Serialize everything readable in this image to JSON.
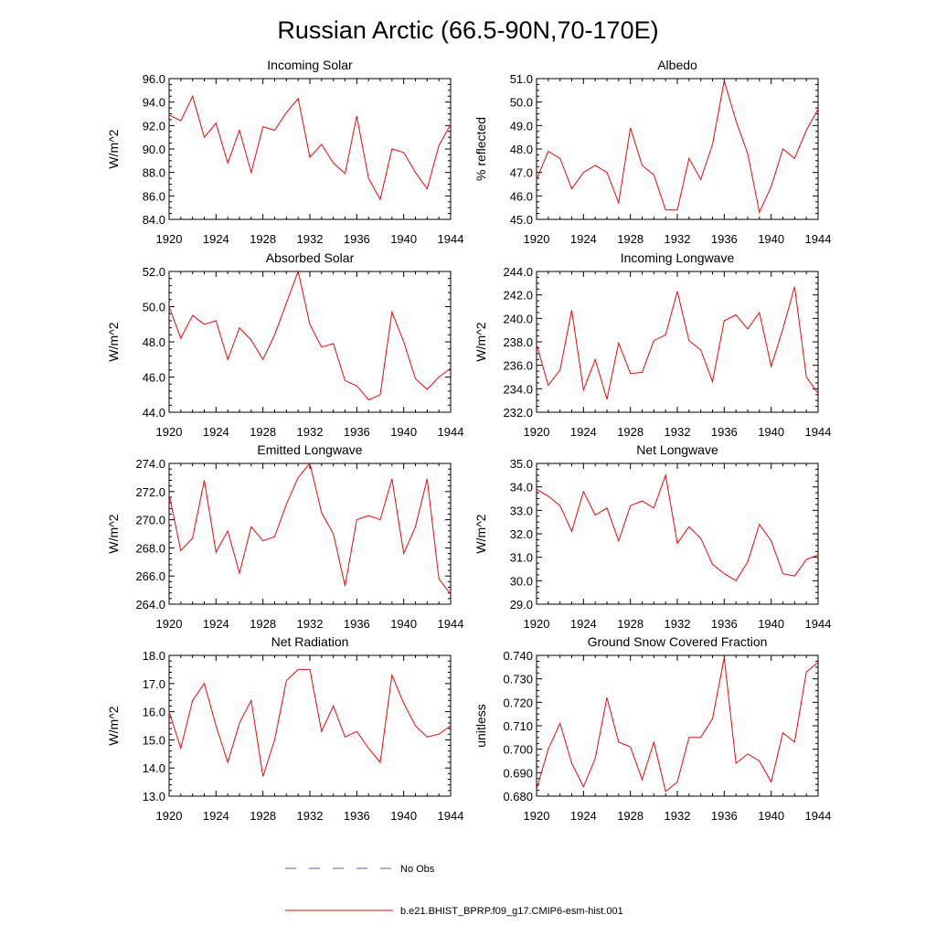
{
  "figure": {
    "title": "Russian Arctic (66.5-90N,70-170E)",
    "series_color": "#ff0000",
    "obs_color": "#5a5ad2"
  },
  "legend": {
    "obs_label": "No Obs",
    "model_label": "b.e21.BHIST_BPRP.f09_g17.CMIP6-esm-hist.001"
  },
  "chart_data": [
    {
      "type": "line",
      "title": "Incoming Solar",
      "ylabel": "W/m^2",
      "xlim": [
        1920,
        1944
      ],
      "ylim": [
        84.0,
        96.0
      ],
      "xticks": [
        1920,
        1924,
        1928,
        1932,
        1936,
        1940,
        1944
      ],
      "yticks": [
        "84.0",
        "86.0",
        "88.0",
        "90.0",
        "92.0",
        "94.0",
        "96.0"
      ],
      "x": [
        1920,
        1921,
        1922,
        1923,
        1924,
        1925,
        1926,
        1927,
        1928,
        1929,
        1930,
        1931,
        1932,
        1933,
        1934,
        1935,
        1936,
        1937,
        1938,
        1939,
        1940,
        1941,
        1942,
        1943,
        1944
      ],
      "values": [
        92.9,
        92.4,
        94.5,
        91.0,
        92.2,
        88.8,
        91.6,
        88.0,
        91.9,
        91.6,
        93.1,
        94.3,
        89.3,
        90.4,
        88.8,
        87.9,
        92.8,
        87.5,
        85.7,
        90.0,
        89.7,
        88.0,
        86.6,
        90.3,
        92.1
      ]
    },
    {
      "type": "line",
      "title": "Albedo",
      "ylabel": "% reflected",
      "xlim": [
        1920,
        1944
      ],
      "ylim": [
        45.0,
        51.0
      ],
      "xticks": [
        1920,
        1924,
        1928,
        1932,
        1936,
        1940,
        1944
      ],
      "yticks": [
        "45.0",
        "46.0",
        "47.0",
        "48.0",
        "49.0",
        "50.0",
        "51.0"
      ],
      "x": [
        1920,
        1921,
        1922,
        1923,
        1924,
        1925,
        1926,
        1927,
        1928,
        1929,
        1930,
        1931,
        1932,
        1933,
        1934,
        1935,
        1936,
        1937,
        1938,
        1939,
        1940,
        1941,
        1942,
        1943,
        1944
      ],
      "values": [
        46.7,
        47.9,
        47.6,
        46.3,
        47.0,
        47.3,
        47.0,
        45.7,
        48.9,
        47.3,
        46.9,
        45.4,
        45.4,
        47.6,
        46.7,
        48.2,
        50.9,
        49.2,
        47.8,
        45.3,
        46.4,
        48.0,
        47.6,
        48.8,
        49.7
      ]
    },
    {
      "type": "line",
      "title": "Absorbed Solar",
      "ylabel": "W/m^2",
      "xlim": [
        1920,
        1944
      ],
      "ylim": [
        44.0,
        52.0
      ],
      "xticks": [
        1920,
        1924,
        1928,
        1932,
        1936,
        1940,
        1944
      ],
      "yticks": [
        "44.0",
        "46.0",
        "48.0",
        "50.0",
        "52.0"
      ],
      "x": [
        1920,
        1921,
        1922,
        1923,
        1924,
        1925,
        1926,
        1927,
        1928,
        1929,
        1930,
        1931,
        1932,
        1933,
        1934,
        1935,
        1936,
        1937,
        1938,
        1939,
        1940,
        1941,
        1942,
        1943,
        1944
      ],
      "values": [
        50.0,
        48.2,
        49.5,
        49.0,
        49.2,
        47.0,
        48.8,
        48.1,
        47.0,
        48.4,
        50.2,
        52.0,
        49.0,
        47.7,
        47.9,
        45.8,
        45.5,
        44.7,
        45.0,
        49.7,
        48.0,
        45.9,
        45.3,
        46.0,
        46.5
      ]
    },
    {
      "type": "line",
      "title": "Incoming Longwave",
      "ylabel": "W/m^2",
      "xlim": [
        1920,
        1944
      ],
      "ylim": [
        232.0,
        244.0
      ],
      "xticks": [
        1920,
        1924,
        1928,
        1932,
        1936,
        1940,
        1944
      ],
      "yticks": [
        "232.0",
        "234.0",
        "236.0",
        "238.0",
        "240.0",
        "242.0",
        "244.0"
      ],
      "x": [
        1920,
        1921,
        1922,
        1923,
        1924,
        1925,
        1926,
        1927,
        1928,
        1929,
        1930,
        1931,
        1932,
        1933,
        1934,
        1935,
        1936,
        1937,
        1938,
        1939,
        1940,
        1941,
        1942,
        1943,
        1944
      ],
      "values": [
        237.8,
        234.3,
        235.6,
        240.7,
        233.9,
        236.5,
        233.1,
        237.9,
        235.3,
        235.4,
        238.1,
        238.6,
        242.3,
        238.1,
        237.3,
        234.6,
        239.8,
        240.3,
        239.1,
        240.5,
        235.9,
        239.1,
        242.7,
        235.0,
        233.6
      ]
    },
    {
      "type": "line",
      "title": "Emitted Longwave",
      "ylabel": "W/m^2",
      "xlim": [
        1920,
        1944
      ],
      "ylim": [
        264.0,
        274.0
      ],
      "xticks": [
        1920,
        1924,
        1928,
        1932,
        1936,
        1940,
        1944
      ],
      "yticks": [
        "264.0",
        "266.0",
        "268.0",
        "270.0",
        "272.0",
        "274.0"
      ],
      "x": [
        1920,
        1921,
        1922,
        1923,
        1924,
        1925,
        1926,
        1927,
        1928,
        1929,
        1930,
        1931,
        1932,
        1933,
        1934,
        1935,
        1936,
        1937,
        1938,
        1939,
        1940,
        1941,
        1942,
        1943,
        1944
      ],
      "values": [
        271.8,
        267.8,
        268.7,
        272.8,
        267.7,
        269.2,
        266.2,
        269.5,
        268.5,
        268.8,
        271.1,
        273.0,
        274.0,
        270.5,
        269.0,
        265.3,
        270.0,
        270.3,
        270.0,
        272.9,
        267.6,
        269.5,
        272.9,
        265.8,
        264.7
      ]
    },
    {
      "type": "line",
      "title": "Net Longwave",
      "ylabel": "W/m^2",
      "xlim": [
        1920,
        1944
      ],
      "ylim": [
        29.0,
        35.0
      ],
      "xticks": [
        1920,
        1924,
        1928,
        1932,
        1936,
        1940,
        1944
      ],
      "yticks": [
        "29.0",
        "30.0",
        "31.0",
        "32.0",
        "33.0",
        "34.0",
        "35.0"
      ],
      "x": [
        1920,
        1921,
        1922,
        1923,
        1924,
        1925,
        1926,
        1927,
        1928,
        1929,
        1930,
        1931,
        1932,
        1933,
        1934,
        1935,
        1936,
        1937,
        1938,
        1939,
        1940,
        1941,
        1942,
        1943,
        1944
      ],
      "values": [
        33.9,
        33.6,
        33.2,
        32.1,
        33.8,
        32.8,
        33.1,
        31.7,
        33.2,
        33.4,
        33.1,
        34.5,
        31.6,
        32.3,
        31.8,
        30.7,
        30.3,
        30.0,
        30.8,
        32.4,
        31.7,
        30.3,
        30.2,
        30.9,
        31.1
      ]
    },
    {
      "type": "line",
      "title": "Net Radiation",
      "ylabel": "W/m^2",
      "xlim": [
        1920,
        1944
      ],
      "ylim": [
        13.0,
        18.0
      ],
      "xticks": [
        1920,
        1924,
        1928,
        1932,
        1936,
        1940,
        1944
      ],
      "yticks": [
        "13.0",
        "14.0",
        "15.0",
        "16.0",
        "17.0",
        "18.0"
      ],
      "x": [
        1920,
        1921,
        1922,
        1923,
        1924,
        1925,
        1926,
        1927,
        1928,
        1929,
        1930,
        1931,
        1932,
        1933,
        1934,
        1935,
        1936,
        1937,
        1938,
        1939,
        1940,
        1941,
        1942,
        1943,
        1944
      ],
      "values": [
        16.0,
        14.7,
        16.4,
        17.0,
        15.5,
        14.2,
        15.6,
        16.4,
        13.7,
        15.0,
        17.1,
        17.5,
        17.5,
        15.3,
        16.2,
        15.1,
        15.3,
        14.7,
        14.2,
        17.3,
        16.3,
        15.5,
        15.1,
        15.2,
        15.5
      ]
    },
    {
      "type": "line",
      "title": "Ground Snow Covered Fraction",
      "ylabel": "unitless",
      "xlim": [
        1920,
        1944
      ],
      "ylim": [
        0.68,
        0.74
      ],
      "xticks": [
        1920,
        1924,
        1928,
        1932,
        1936,
        1940,
        1944
      ],
      "yticks": [
        "0.680",
        "0.690",
        "0.700",
        "0.710",
        "0.720",
        "0.730",
        "0.740"
      ],
      "x": [
        1920,
        1921,
        1922,
        1923,
        1924,
        1925,
        1926,
        1927,
        1928,
        1929,
        1930,
        1931,
        1932,
        1933,
        1934,
        1935,
        1936,
        1937,
        1938,
        1939,
        1940,
        1941,
        1942,
        1943,
        1944
      ],
      "values": [
        0.683,
        0.7,
        0.711,
        0.694,
        0.684,
        0.696,
        0.722,
        0.703,
        0.701,
        0.687,
        0.703,
        0.682,
        0.686,
        0.705,
        0.705,
        0.713,
        0.739,
        0.694,
        0.698,
        0.695,
        0.686,
        0.707,
        0.703,
        0.733,
        0.737
      ]
    }
  ]
}
